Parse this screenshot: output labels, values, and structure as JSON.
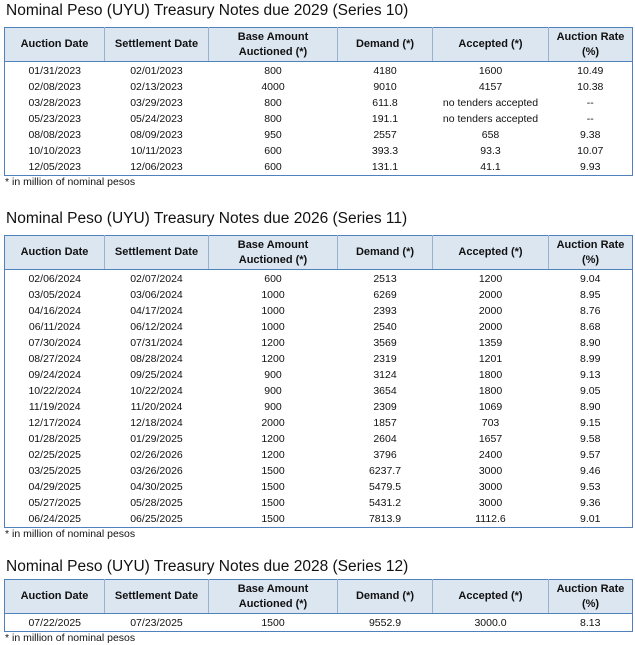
{
  "columns": [
    "Auction Date",
    "Settlement Date",
    "Base Amount Auctioned (*)",
    "Demand (*)",
    "Accepted (*)",
    "Auction Rate (%)"
  ],
  "footnote": "* in million of nominal pesos",
  "tables": [
    {
      "title": "Nominal Peso (UYU) Treasury Notes due 2029 (Series 10)",
      "rows": [
        [
          "01/31/2023",
          "02/01/2023",
          "800",
          "4180",
          "1600",
          "10.49"
        ],
        [
          "02/08/2023",
          "02/13/2023",
          "4000",
          "9010",
          "4157",
          "10.38"
        ],
        [
          "03/28/2023",
          "03/29/2023",
          "800",
          "611.8",
          "no tenders accepted",
          "--"
        ],
        [
          "05/23/2023",
          "05/24/2023",
          "800",
          "191.1",
          "no tenders accepted",
          "--"
        ],
        [
          "08/08/2023",
          "08/09/2023",
          "950",
          "2557",
          "658",
          "9.38"
        ],
        [
          "10/10/2023",
          "10/11/2023",
          "600",
          "393.3",
          "93.3",
          "10.07"
        ],
        [
          "12/05/2023",
          "12/06/2023",
          "600",
          "131.1",
          "41.1",
          "9.93"
        ]
      ]
    },
    {
      "title": "Nominal Peso (UYU) Treasury Notes due 2026 (Series 11)",
      "rows": [
        [
          "02/06/2024",
          "02/07/2024",
          "600",
          "2513",
          "1200",
          "9.04"
        ],
        [
          "03/05/2024",
          "03/06/2024",
          "1000",
          "6269",
          "2000",
          "8.95"
        ],
        [
          "04/16/2024",
          "04/17/2024",
          "1000",
          "2393",
          "2000",
          "8.76"
        ],
        [
          "06/11/2024",
          "06/12/2024",
          "1000",
          "2540",
          "2000",
          "8.68"
        ],
        [
          "07/30/2024",
          "07/31/2024",
          "1200",
          "3569",
          "1359",
          "8.90"
        ],
        [
          "08/27/2024",
          "08/28/2024",
          "1200",
          "2319",
          "1201",
          "8.99"
        ],
        [
          "09/24/2024",
          "09/25/2024",
          "900",
          "3124",
          "1800",
          "9.13"
        ],
        [
          "10/22/2024",
          "10/22/2024",
          "900",
          "3654",
          "1800",
          "9.05"
        ],
        [
          "11/19/2024",
          "11/20/2024",
          "900",
          "2309",
          "1069",
          "8.90"
        ],
        [
          "12/17/2024",
          "12/18/2024",
          "2000",
          "1857",
          "703",
          "9.15"
        ],
        [
          "01/28/2025",
          "01/29/2025",
          "1200",
          "2604",
          "1657",
          "9.58"
        ],
        [
          "02/25/2025",
          "02/26/2026",
          "1200",
          "3796",
          "2400",
          "9.57"
        ],
        [
          "03/25/2025",
          "03/26/2026",
          "1500",
          "6237.7",
          "3000",
          "9.46"
        ],
        [
          "04/29/2025",
          "04/30/2025",
          "1500",
          "5479.5",
          "3000",
          "9.53"
        ],
        [
          "05/27/2025",
          "05/28/2025",
          "1500",
          "5431.2",
          "3000",
          "9.36"
        ],
        [
          "06/24/2025",
          "06/25/2025",
          "1500",
          "7813.9",
          "1112.6",
          "9.01"
        ]
      ]
    },
    {
      "title": "Nominal Peso (UYU) Treasury Notes due 2028 (Series 12)",
      "rows": [
        [
          "07/22/2025",
          "07/23/2025",
          "1500",
          "9552.9",
          "3000.0",
          "8.13"
        ]
      ]
    }
  ]
}
